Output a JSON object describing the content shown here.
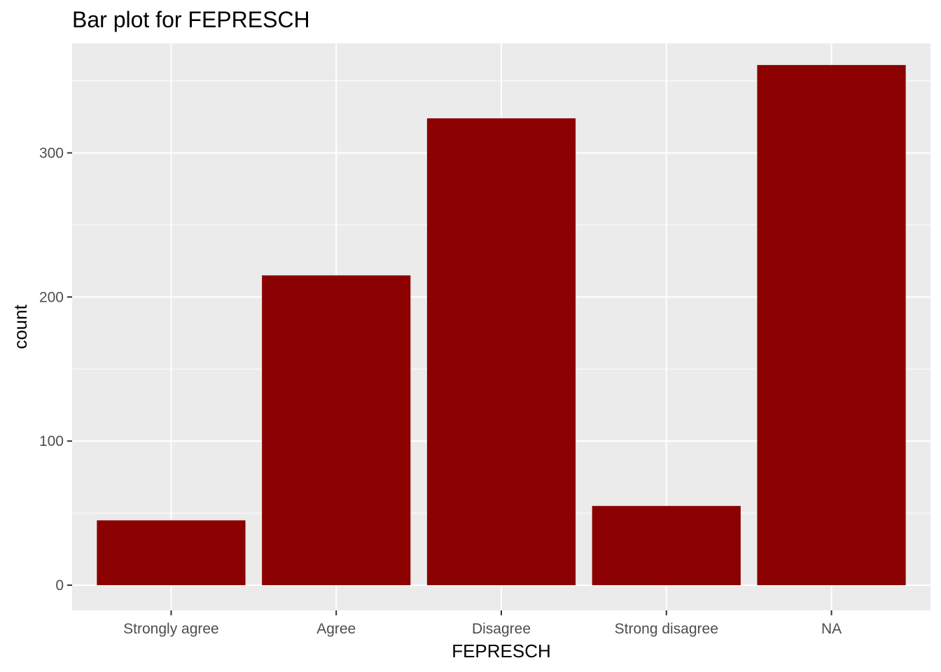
{
  "chart_data": {
    "type": "bar",
    "title": "Bar plot for FEPRESCH",
    "xlabel": "FEPRESCH",
    "ylabel": "count",
    "categories": [
      "Strongly agree",
      "Agree",
      "Disagree",
      "Strong disagree",
      "NA"
    ],
    "values": [
      45,
      215,
      324,
      55,
      361
    ],
    "ylim": [
      -17.5,
      376
    ],
    "yticks": [
      0,
      100,
      200,
      300
    ],
    "ytick_labels": [
      "0",
      "100",
      "200",
      "300"
    ],
    "grid": true,
    "legend": "none",
    "colors": {
      "bar": "#8b0000",
      "panel": "#ebebeb",
      "grid": "#ffffff"
    }
  }
}
